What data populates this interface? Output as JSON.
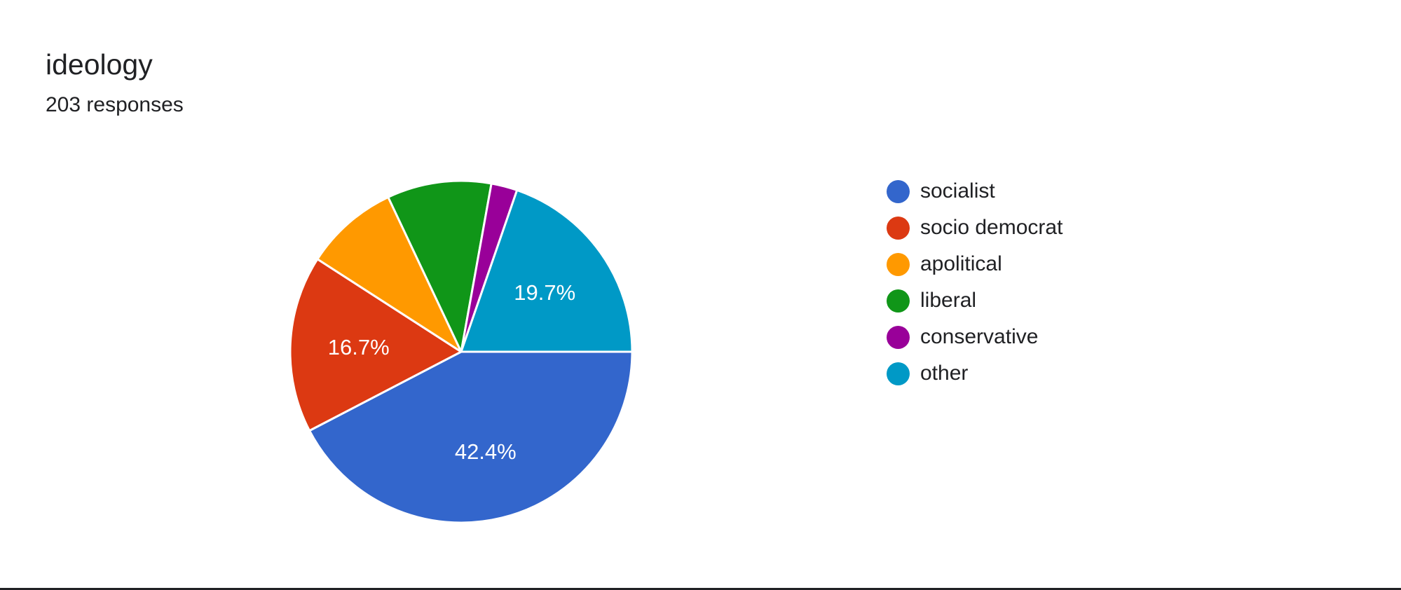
{
  "header": {
    "title": "ideology",
    "subtitle": "203 responses"
  },
  "chart_data": {
    "type": "pie",
    "title": "ideology",
    "subtitle": "203 responses",
    "total": 203,
    "categories": [
      "socialist",
      "socio democrat",
      "apolitical",
      "liberal",
      "conservative",
      "other"
    ],
    "values": [
      86,
      34,
      18,
      20,
      5,
      40
    ],
    "percentages": [
      42.4,
      16.7,
      8.9,
      9.9,
      2.5,
      19.7
    ],
    "colors": [
      "#3366cc",
      "#dc3912",
      "#ff9900",
      "#109618",
      "#990099",
      "#0099c6"
    ],
    "slice_labels": [
      "42.4%",
      "16.7%",
      "",
      "",
      "",
      "19.7%"
    ],
    "legend_position": "right",
    "start_angle_deg": 90
  },
  "legend": {
    "items": [
      {
        "label": "socialist",
        "color": "#3366cc"
      },
      {
        "label": "socio democrat",
        "color": "#dc3912"
      },
      {
        "label": "apolitical",
        "color": "#ff9900"
      },
      {
        "label": "liberal",
        "color": "#109618"
      },
      {
        "label": "conservative",
        "color": "#990099"
      },
      {
        "label": "other",
        "color": "#0099c6"
      }
    ]
  }
}
